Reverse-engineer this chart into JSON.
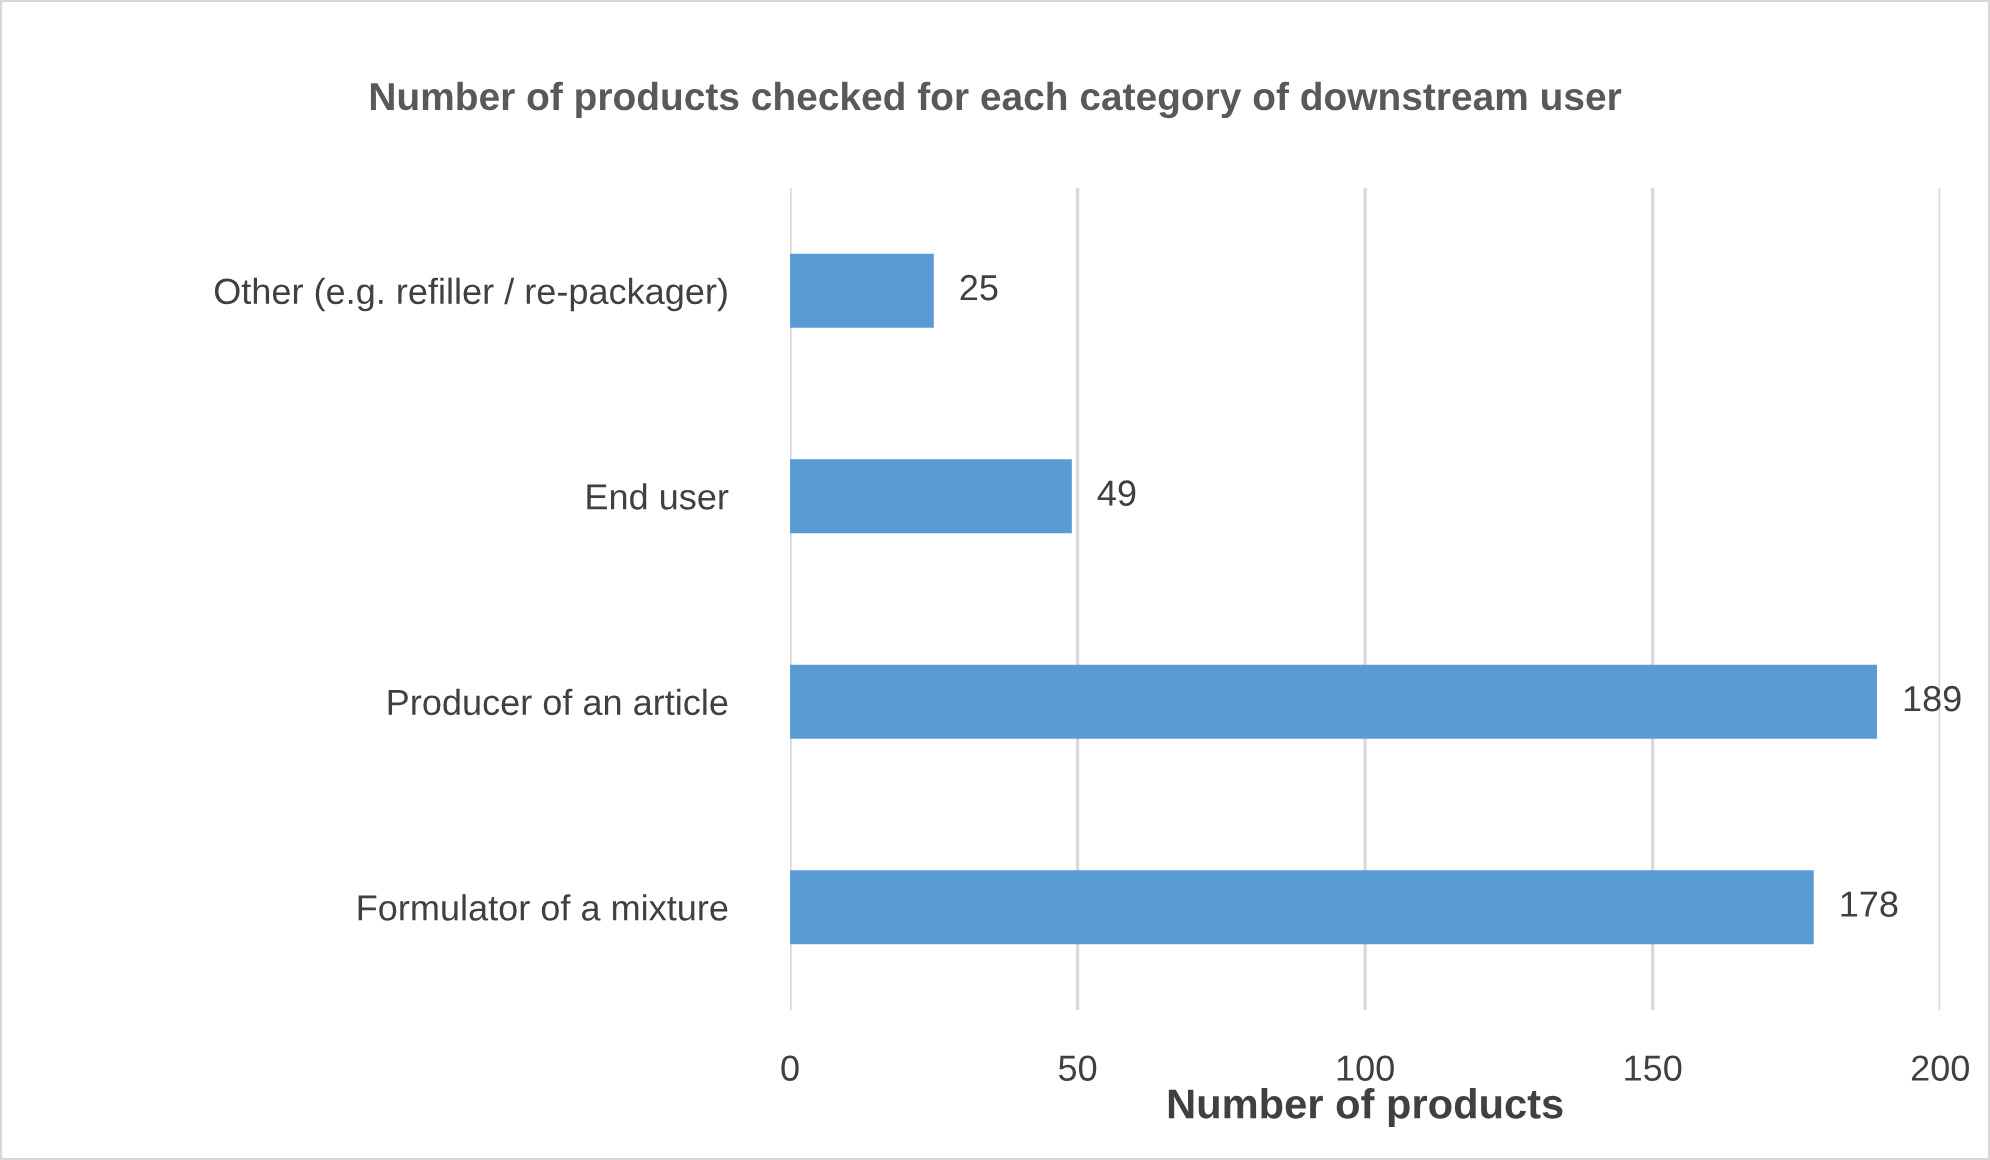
{
  "chart_data": {
    "type": "bar",
    "orientation": "horizontal",
    "title": "Number of products checked for each category of downstream user",
    "xlabel": "Number of products",
    "categories": [
      "Other (e.g. refiller / re-packager)",
      "End user",
      "Producer of an article",
      "Formulator of a mixture"
    ],
    "values": [
      25,
      49,
      189,
      178
    ],
    "color": "#5b9bd5",
    "xlim": [
      0,
      200
    ],
    "xticks": [
      0,
      50,
      100,
      150,
      200
    ],
    "grid": "x",
    "data_labels": true
  }
}
